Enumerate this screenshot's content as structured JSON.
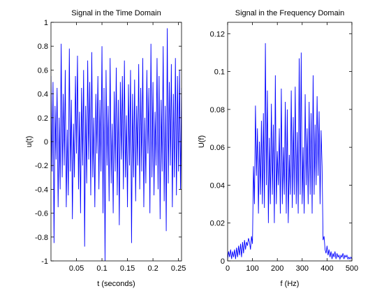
{
  "chart_data": [
    {
      "type": "line",
      "title": "Signal in the Time Domain",
      "xlabel": "t (seconds)",
      "ylabel": "u(t)",
      "xlim": [
        0.0,
        0.256
      ],
      "ylim": [
        -1,
        1
      ],
      "xticks": [
        0.05,
        0.1,
        0.15,
        0.2,
        0.25
      ],
      "xtick_labels": [
        "0.05",
        "0.1",
        "0.15",
        "0.2",
        "0.25"
      ],
      "yticks": [
        -1,
        -0.8,
        -0.6,
        -0.4,
        -0.2,
        0,
        0.2,
        0.4,
        0.6,
        0.8,
        1
      ],
      "ytick_labels": [
        "-1",
        "-0.8",
        "-0.6",
        "-0.4",
        "-0.2",
        "0",
        "0.2",
        "0.4",
        "0.6",
        "0.8",
        "1"
      ],
      "grid": false,
      "line_color": "#0000ff",
      "series": [
        {
          "x": [
            0.0,
            0.002,
            0.004,
            0.006,
            0.008,
            0.01,
            0.012,
            0.014,
            0.016,
            0.018,
            0.02,
            0.022,
            0.024,
            0.026,
            0.028,
            0.03,
            0.032,
            0.034,
            0.036,
            0.038,
            0.04,
            0.042,
            0.044,
            0.046,
            0.048,
            0.05,
            0.052,
            0.054,
            0.056,
            0.058,
            0.06,
            0.062,
            0.064,
            0.066,
            0.068,
            0.07,
            0.072,
            0.074,
            0.076,
            0.078,
            0.08,
            0.082,
            0.084,
            0.086,
            0.088,
            0.09,
            0.092,
            0.094,
            0.096,
            0.098,
            0.1,
            0.102,
            0.104,
            0.106,
            0.108,
            0.11,
            0.112,
            0.114,
            0.116,
            0.118,
            0.12,
            0.122,
            0.124,
            0.126,
            0.128,
            0.13,
            0.132,
            0.134,
            0.136,
            0.138,
            0.14,
            0.142,
            0.144,
            0.146,
            0.148,
            0.15,
            0.152,
            0.154,
            0.156,
            0.158,
            0.16,
            0.162,
            0.164,
            0.166,
            0.168,
            0.17,
            0.172,
            0.174,
            0.176,
            0.178,
            0.18,
            0.182,
            0.184,
            0.186,
            0.188,
            0.19,
            0.192,
            0.194,
            0.196,
            0.198,
            0.2,
            0.202,
            0.204,
            0.206,
            0.208,
            0.21,
            0.212,
            0.214,
            0.216,
            0.218,
            0.22,
            0.222,
            0.224,
            0.226,
            0.228,
            0.23,
            0.232,
            0.234,
            0.236,
            0.238,
            0.24,
            0.242,
            0.244,
            0.246,
            0.248,
            0.25,
            0.252,
            0.254,
            0.256
          ],
          "y": [
            0.55,
            -0.25,
            0.5,
            -0.85,
            0.3,
            -0.15,
            0.45,
            -0.55,
            0.2,
            -0.4,
            0.82,
            -0.3,
            0.4,
            -0.2,
            0.6,
            -0.55,
            0.1,
            -0.45,
            0.78,
            -0.25,
            0.35,
            -0.65,
            0.15,
            -0.3,
            0.55,
            -0.1,
            0.72,
            -0.4,
            0.25,
            -0.6,
            0.45,
            -0.2,
            0.6,
            -0.88,
            0.3,
            -0.35,
            0.68,
            -0.15,
            0.5,
            -0.45,
            0.75,
            -0.3,
            0.2,
            -0.55,
            0.4,
            -0.1,
            0.55,
            -0.4,
            0.35,
            -0.25,
            0.8,
            -0.6,
            0.45,
            -1.0,
            0.6,
            -0.2,
            0.3,
            -0.5,
            0.7,
            -0.35,
            0.15,
            -0.6,
            0.42,
            -0.25,
            0.62,
            -0.45,
            0.35,
            -0.7,
            0.5,
            -0.15,
            0.55,
            -0.4,
            0.68,
            -0.3,
            0.22,
            -0.55,
            0.48,
            -0.2,
            0.6,
            -0.85,
            0.4,
            -0.3,
            0.52,
            -0.5,
            0.3,
            -0.2,
            0.65,
            -0.4,
            0.45,
            -0.25,
            0.7,
            -0.55,
            0.2,
            -0.35,
            0.6,
            -0.1,
            0.45,
            -0.6,
            0.82,
            -0.3,
            0.5,
            -0.45,
            0.25,
            -0.2,
            0.7,
            -0.4,
            0.55,
            -0.65,
            0.35,
            -0.25,
            0.8,
            -0.5,
            0.3,
            -0.75,
            0.95,
            -0.35,
            0.5,
            -0.2,
            0.65,
            -0.55,
            0.4,
            -0.3,
            0.7,
            -0.45,
            0.55,
            -0.25,
            0.6,
            -0.4,
            0.45
          ]
        }
      ]
    },
    {
      "type": "line",
      "title": "Signal in the Frequency Domain",
      "xlabel": "f (Hz)",
      "ylabel": "U(f)",
      "xlim": [
        0,
        500
      ],
      "ylim": [
        0,
        0.126
      ],
      "xticks": [
        0,
        100,
        200,
        300,
        400,
        500
      ],
      "xtick_labels": [
        "0",
        "100",
        "200",
        "300",
        "400",
        "500"
      ],
      "yticks": [
        0,
        0.02,
        0.04,
        0.06,
        0.08,
        0.1,
        0.12
      ],
      "ytick_labels": [
        "0",
        "0.02",
        "0.04",
        "0.06",
        "0.08",
        "0.1",
        "0.12"
      ],
      "grid": false,
      "line_color": "#0000ff",
      "series": [
        {
          "x": [
            0,
            4,
            8,
            12,
            16,
            20,
            24,
            28,
            32,
            36,
            40,
            44,
            48,
            52,
            56,
            60,
            64,
            68,
            72,
            76,
            80,
            84,
            88,
            92,
            96,
            100,
            104,
            108,
            112,
            116,
            120,
            124,
            128,
            132,
            136,
            140,
            144,
            148,
            152,
            156,
            160,
            164,
            168,
            172,
            176,
            180,
            184,
            188,
            192,
            196,
            200,
            204,
            208,
            212,
            216,
            220,
            224,
            228,
            232,
            236,
            240,
            244,
            248,
            252,
            256,
            260,
            264,
            268,
            272,
            276,
            280,
            284,
            288,
            292,
            296,
            300,
            304,
            308,
            312,
            316,
            320,
            324,
            328,
            332,
            336,
            340,
            344,
            348,
            352,
            356,
            360,
            364,
            368,
            372,
            376,
            380,
            384,
            388,
            392,
            396,
            400,
            404,
            408,
            412,
            416,
            420,
            424,
            428,
            432,
            436,
            440,
            444,
            448,
            452,
            456,
            460,
            464,
            468,
            472,
            476,
            480,
            484,
            488,
            492,
            496,
            500
          ],
          "y": [
            0.001,
            0.005,
            0.002,
            0.006,
            0.001,
            0.005,
            0.002,
            0.006,
            0.001,
            0.007,
            0.002,
            0.008,
            0.003,
            0.009,
            0.002,
            0.01,
            0.004,
            0.011,
            0.006,
            0.01,
            0.008,
            0.012,
            0.01,
            0.006,
            0.013,
            0.009,
            0.05,
            0.03,
            0.082,
            0.045,
            0.07,
            0.025,
            0.063,
            0.035,
            0.074,
            0.03,
            0.078,
            0.028,
            0.115,
            0.04,
            0.09,
            0.02,
            0.065,
            0.03,
            0.083,
            0.035,
            0.072,
            0.02,
            0.098,
            0.03,
            0.058,
            0.04,
            0.07,
            0.025,
            0.091,
            0.03,
            0.06,
            0.035,
            0.084,
            0.025,
            0.08,
            0.02,
            0.056,
            0.035,
            0.09,
            0.028,
            0.076,
            0.035,
            0.092,
            0.03,
            0.068,
            0.025,
            0.107,
            0.035,
            0.11,
            0.03,
            0.06,
            0.025,
            0.088,
            0.04,
            0.07,
            0.03,
            0.084,
            0.035,
            0.078,
            0.025,
            0.098,
            0.035,
            0.072,
            0.04,
            0.087,
            0.045,
            0.079,
            0.03,
            0.069,
            0.05,
            0.011,
            0.013,
            0.006,
            0.004,
            0.008,
            0.003,
            0.006,
            0.002,
            0.005,
            0.001,
            0.004,
            0.002,
            0.005,
            0.001,
            0.004,
            0.002,
            0.003,
            0.001,
            0.003,
            0.002,
            0.004,
            0.001,
            0.003,
            0.002,
            0.003,
            0.001,
            0.002,
            0.001,
            0.002,
            0.001
          ]
        }
      ]
    }
  ]
}
